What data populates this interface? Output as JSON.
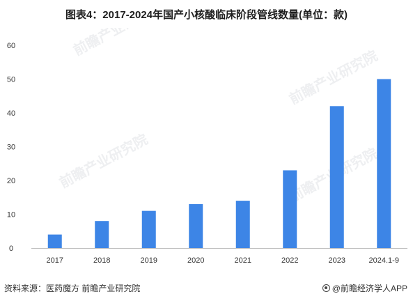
{
  "title": "图表4：2017-2024年国产小核酸临床阶段管线数量(单位：款)",
  "chart_data": {
    "type": "bar",
    "categories": [
      "2017",
      "2018",
      "2019",
      "2020",
      "2021",
      "2022",
      "2023",
      "2024.1-9"
    ],
    "values": [
      4,
      8,
      11,
      13,
      14,
      23,
      42,
      50
    ],
    "ylim": [
      0,
      60
    ],
    "yticks": [
      0,
      10,
      20,
      30,
      40,
      50,
      60
    ],
    "grid": false,
    "bar_color": "#3d85e6",
    "axis_color": "#bfbfbf"
  },
  "watermark": "前瞻产业研究院",
  "footer": {
    "source": "资料来源：医药魔方 前瞻产业研究院",
    "brand": "@前瞻经济学人APP",
    "brand_icon": "brand-logo-icon"
  }
}
